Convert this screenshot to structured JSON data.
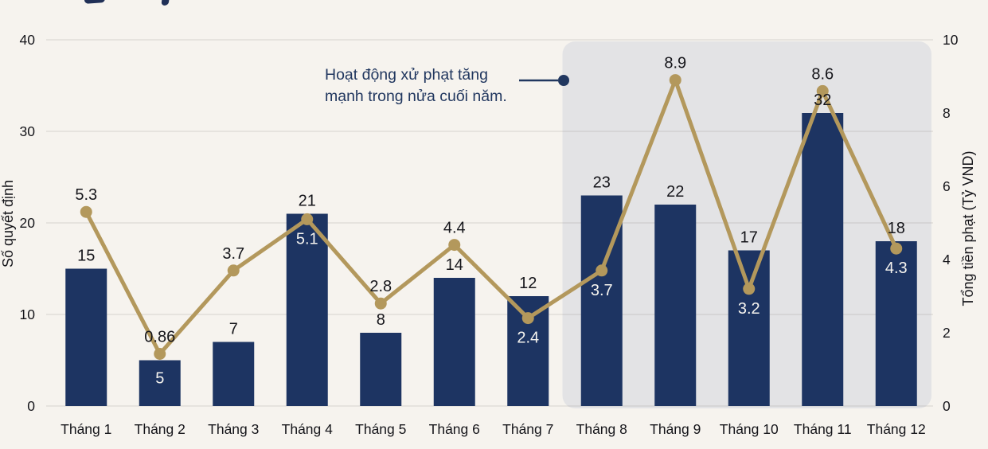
{
  "chart_data": {
    "type": "bar+line",
    "categories": [
      "Tháng 1",
      "Tháng 2",
      "Tháng 3",
      "Tháng 4",
      "Tháng 5",
      "Tháng 6",
      "Tháng 7",
      "Tháng 8",
      "Tháng 9",
      "Tháng 10",
      "Tháng 11",
      "Tháng 12"
    ],
    "series": [
      {
        "name": "Số quyết định",
        "type": "bar",
        "axis": "left",
        "values": [
          15,
          5,
          7,
          21,
          8,
          14,
          12,
          23,
          22,
          17,
          32,
          18
        ],
        "color": "#1d3462",
        "label_placement": [
          "above",
          "inside",
          "above",
          "above",
          "above",
          "above",
          "above",
          "above",
          "above",
          "above",
          "above",
          "above"
        ]
      },
      {
        "name": "Tổng tiền phạt (Tỷ VND)",
        "type": "line",
        "axis": "right",
        "values": [
          5.3,
          0.86,
          3.7,
          5.1,
          2.8,
          4.4,
          2.4,
          3.7,
          8.9,
          3.2,
          8.6,
          4.3
        ],
        "color": "#b3985c",
        "label_placement": [
          "above",
          "above",
          "above",
          "inside",
          "above",
          "above",
          "inside",
          "inside",
          "above",
          "inside",
          "above",
          "inside"
        ]
      }
    ],
    "left_axis": {
      "label": "Số quyết định",
      "ticks": [
        0,
        10,
        20,
        30,
        40
      ],
      "range": [
        0,
        40
      ]
    },
    "right_axis": {
      "label": "Tổng tiền phạt (Tỷ VND)",
      "ticks": [
        0,
        2,
        4,
        6,
        8,
        10
      ],
      "range": [
        0,
        10
      ]
    },
    "highlight_region": {
      "from_category": "Tháng 8",
      "to_category": "Tháng 12",
      "color": "#e3e3e5"
    },
    "annotation": {
      "text_line1": "Hoạt động xử phạt tăng",
      "text_line2": "mạnh trong nửa cuối năm.",
      "color": "#21375f"
    },
    "grid": true,
    "legend": "none"
  },
  "colors": {
    "background": "#f6f3ee",
    "bar": "#1d3462",
    "line": "#b3985c",
    "highlight_region": "#e3e3e5",
    "label_dark": "#15151a",
    "label_light": "#f6f4ef",
    "annotation": "#21375f",
    "gridline": "rgba(110,105,92,0.18)"
  }
}
